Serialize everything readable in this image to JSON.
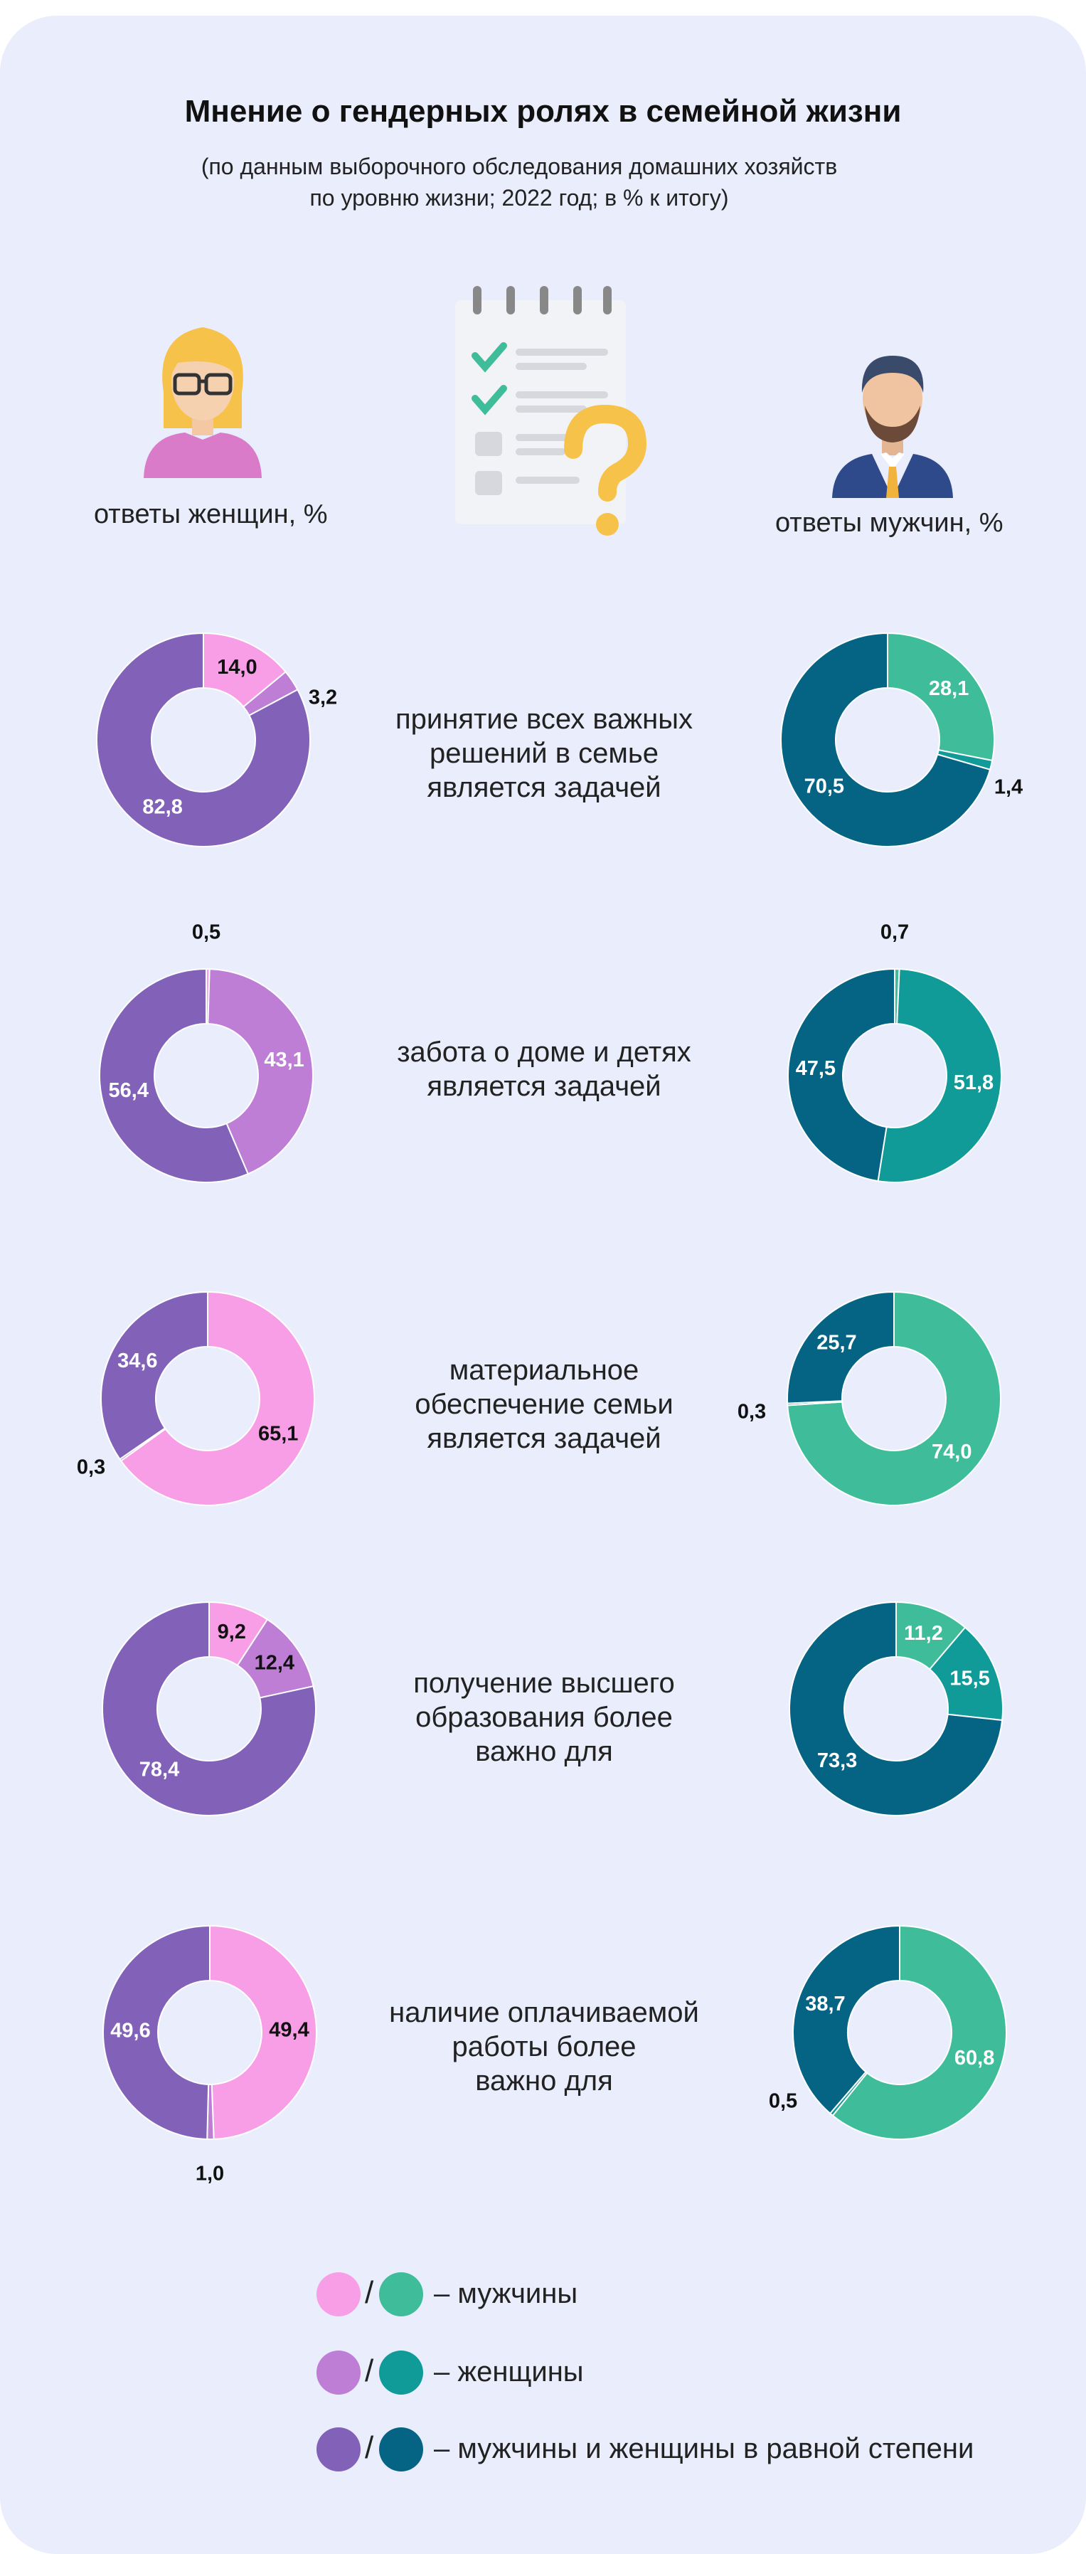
{
  "title": "Мнение о гендерных ролях в семейной жизни",
  "subtitle_line1": "(по данным выборочного обследования домашних хозяйств",
  "subtitle_line2": "по уровню жизни; 2022 год; в % к итогу)",
  "women_label": "ответы женщин, %",
  "men_label": "ответы мужчин, %",
  "icons": [
    "woman-icon",
    "checklist-question-icon",
    "man-icon"
  ],
  "colors": {
    "women": [
      "#f89ee6",
      "#be7ed6",
      "#8162b8"
    ],
    "men": [
      "#3fbd9a",
      "#109a98",
      "#056384"
    ]
  },
  "chart_data": {
    "type": "donut",
    "categories": [
      "мужчины",
      "женщины",
      "мужчины и женщины в равной степени"
    ],
    "questions": [
      {
        "lines": [
          "принятие всех важных",
          "решений в семье",
          "является задачей"
        ],
        "women": {
          "labels": [
            "14,0",
            "3,2",
            "82,8"
          ],
          "values": [
            14.0,
            3.2,
            82.8
          ]
        },
        "men": {
          "labels": [
            "28,1",
            "1,4",
            "70,5"
          ],
          "values": [
            28.1,
            1.4,
            70.5
          ]
        }
      },
      {
        "lines": [
          "забота о доме и детях",
          "является задачей"
        ],
        "women": {
          "labels": [
            "0,5",
            "43,1",
            "56,4"
          ],
          "values": [
            0.5,
            43.1,
            56.4
          ]
        },
        "men": {
          "labels": [
            "0,7",
            "51,8",
            "47,5"
          ],
          "values": [
            0.7,
            51.8,
            47.5
          ]
        }
      },
      {
        "lines": [
          "материальное",
          "обеспечение семьи",
          "является задачей"
        ],
        "women": {
          "labels": [
            "65,1",
            "0,3",
            "34,6"
          ],
          "values": [
            65.1,
            0.3,
            34.6
          ]
        },
        "men": {
          "labels": [
            "74,0",
            "0,3",
            "25,7"
          ],
          "values": [
            74.0,
            0.3,
            25.7
          ]
        }
      },
      {
        "lines": [
          "получение высшего",
          "образования более",
          "важно для"
        ],
        "women": {
          "labels": [
            "9,2",
            "12,4",
            "78,4"
          ],
          "values": [
            9.2,
            12.4,
            78.4
          ]
        },
        "men": {
          "labels": [
            "11,2",
            "15,5",
            "73,3"
          ],
          "values": [
            11.2,
            15.5,
            73.3
          ]
        }
      },
      {
        "lines": [
          "наличие оплачиваемой",
          "работы более",
          "важно для"
        ],
        "women": {
          "labels": [
            "49,4",
            "1,0",
            "49,6"
          ],
          "values": [
            49.4,
            1.0,
            49.6
          ]
        },
        "men": {
          "labels": [
            "60,8",
            "0,5",
            "38,7"
          ],
          "values": [
            60.8,
            0.5,
            38.7
          ]
        }
      }
    ]
  },
  "legend": [
    {
      "label": "– мужчины",
      "sep": "/"
    },
    {
      "label": "– женщины",
      "sep": "/"
    },
    {
      "label": "– мужчины и женщины в равной степени",
      "sep": "/"
    }
  ]
}
